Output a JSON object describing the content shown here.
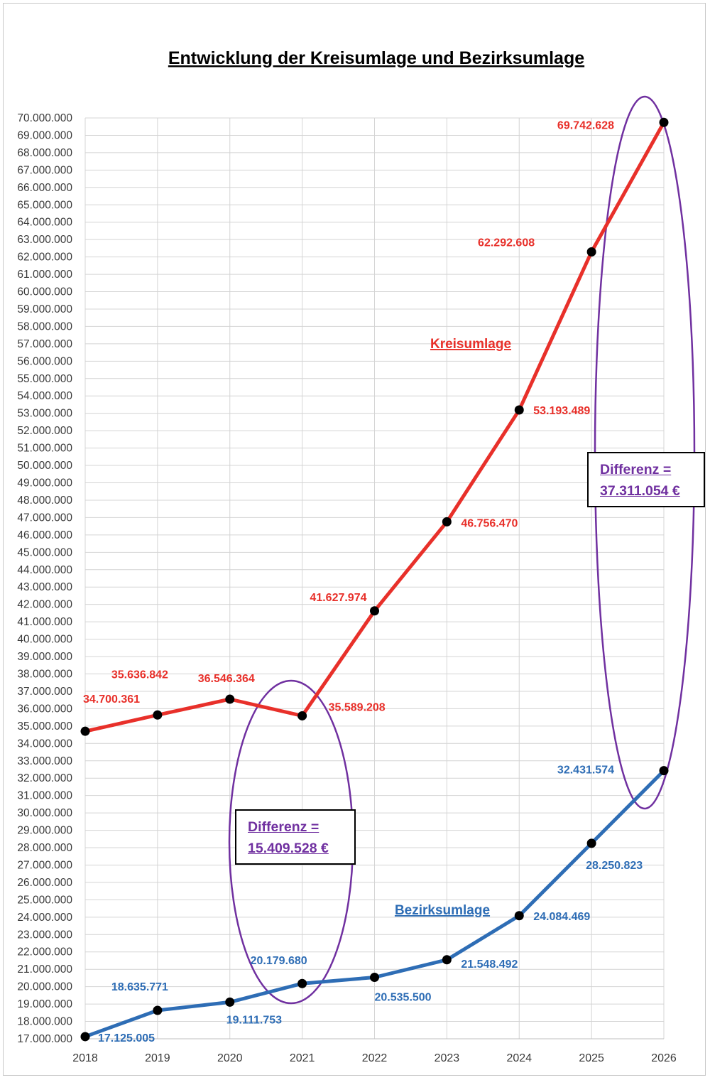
{
  "chart_data": {
    "type": "line",
    "title": "Entwicklung der Kreisumlage und Bezirksumlage",
    "xlabel": "",
    "ylabel": "",
    "ylim": [
      17000000,
      70000000
    ],
    "ytick_step": 1000000,
    "grid": true,
    "x": [
      "2018",
      "2019",
      "2020",
      "2021",
      "2022",
      "2023",
      "2024",
      "2025",
      "2026"
    ],
    "series": [
      {
        "name": "Kreisumlage",
        "color": "#e8302a",
        "values": [
          34700361,
          35636842,
          36546364,
          35589208,
          41627974,
          46756470,
          53193489,
          62292608,
          69742628
        ],
        "labels": [
          "34.700.361",
          "35.636.842",
          "36.546.364",
          "35.589.208",
          "41.627.974",
          "46.756.470",
          "53.193.489",
          "62.292.608",
          "69.742.628"
        ]
      },
      {
        "name": "Bezirksumlage",
        "color": "#2e6db5",
        "values": [
          17125005,
          18635771,
          19111753,
          20179680,
          20535500,
          21548492,
          24084469,
          28250823,
          32431574
        ],
        "labels": [
          "17.125.005",
          "18.635.771",
          "19.111.753",
          "20.179.680",
          "20.535.500",
          "21.548.492",
          "24.084.469",
          "28.250.823",
          "32.431.574"
        ]
      }
    ],
    "annotations": [
      {
        "line1": "Differenz =",
        "line2": "15.409.528 €",
        "year": "2021"
      },
      {
        "line1": "Differenz =",
        "line2": "37.311.054 €",
        "year": "2026"
      }
    ],
    "annotation_color": "#7030a0"
  }
}
